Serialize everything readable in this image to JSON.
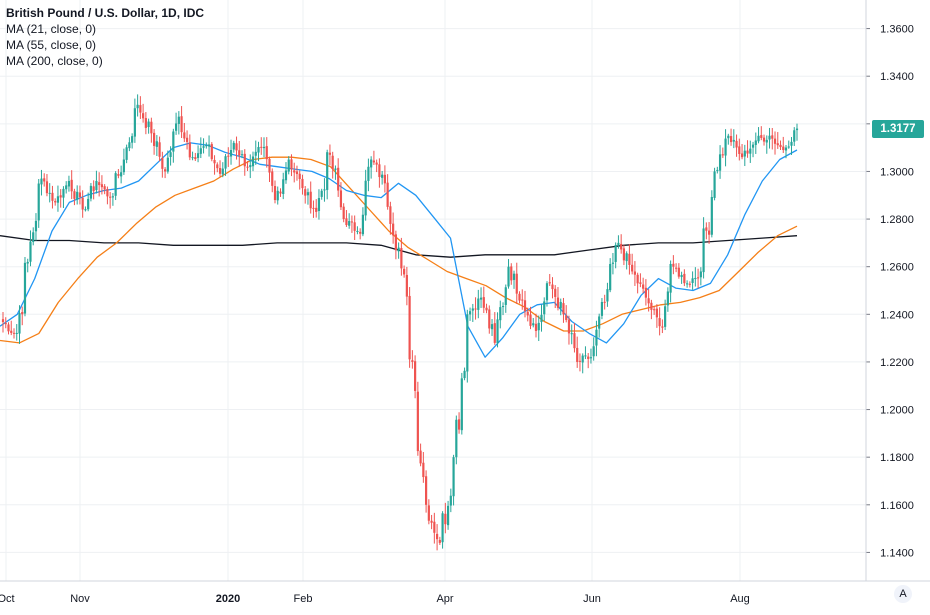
{
  "legend": {
    "title": "British Pound / U.S. Dollar, 1D, IDC",
    "ma21": "MA (21, close, 0)",
    "ma55": "MA (55, close, 0)",
    "ma200": "MA (200, close, 0)"
  },
  "last_price": {
    "label": "1.3177",
    "value": 1.3177,
    "color": "#26a69a"
  },
  "axis_button": "A",
  "colors": {
    "up": "#26a69a",
    "down": "#ef5350",
    "ma21": "#2196f3",
    "ma55": "#f57f17",
    "ma200": "#131722",
    "grid": "#eef0f3"
  },
  "chart_data": {
    "type": "candlestick",
    "title": "British Pound / U.S. Dollar, 1D, IDC",
    "y_ticks": [
      "1.3600",
      "1.3400",
      "1.3200",
      "1.3000",
      "1.2800",
      "1.2600",
      "1.2400",
      "1.2200",
      "1.2000",
      "1.1800",
      "1.1600",
      "1.1400"
    ],
    "ylim": [
      1.128,
      1.372
    ],
    "x_ticks": [
      "Oct",
      "Nov",
      "2020",
      "Feb",
      "Apr",
      "Jun",
      "Aug"
    ],
    "grid": true,
    "anchors": [
      [
        1.238,
        1.232
      ],
      [
        1.226,
        1.262
      ],
      [
        1.262,
        1.297
      ],
      [
        1.297,
        1.287
      ],
      [
        1.287,
        1.296
      ],
      [
        1.296,
        1.284
      ],
      [
        1.284,
        1.296
      ],
      [
        1.296,
        1.289
      ],
      [
        1.289,
        1.305
      ],
      [
        1.305,
        1.328
      ],
      [
        1.328,
        1.316
      ],
      [
        1.316,
        1.3
      ],
      [
        1.3,
        1.323
      ],
      [
        1.323,
        1.306
      ],
      [
        1.306,
        1.311
      ],
      [
        1.311,
        1.299
      ],
      [
        1.299,
        1.312
      ],
      [
        1.312,
        1.302
      ],
      [
        1.302,
        1.31
      ],
      [
        1.31,
        1.288
      ],
      [
        1.288,
        1.305
      ],
      [
        1.305,
        1.293
      ],
      [
        1.293,
        1.283
      ],
      [
        1.283,
        1.307
      ],
      [
        1.307,
        1.28
      ],
      [
        1.28,
        1.275
      ],
      [
        1.275,
        1.305
      ],
      [
        1.305,
        1.295
      ],
      [
        1.295,
        1.268
      ],
      [
        1.268,
        1.22
      ],
      [
        1.22,
        1.16
      ],
      [
        1.16,
        1.144
      ],
      [
        1.144,
        1.18
      ],
      [
        1.18,
        1.24
      ],
      [
        1.24,
        1.247
      ],
      [
        1.247,
        1.228
      ],
      [
        1.228,
        1.26
      ],
      [
        1.26,
        1.246
      ],
      [
        1.246,
        1.233
      ],
      [
        1.233,
        1.253
      ],
      [
        1.253,
        1.24
      ],
      [
        1.24,
        1.22
      ],
      [
        1.22,
        1.222
      ],
      [
        1.222,
        1.245
      ],
      [
        1.245,
        1.27
      ],
      [
        1.27,
        1.258
      ],
      [
        1.258,
        1.247
      ],
      [
        1.247,
        1.235
      ],
      [
        1.235,
        1.26
      ],
      [
        1.26,
        1.253
      ],
      [
        1.253,
        1.258
      ],
      [
        1.258,
        1.3
      ],
      [
        1.3,
        1.315
      ],
      [
        1.315,
        1.306
      ],
      [
        1.306,
        1.313
      ],
      [
        1.313,
        1.315
      ],
      [
        1.315,
        1.309
      ],
      [
        1.309,
        1.318
      ]
    ],
    "ma21": [
      1.235,
      1.24,
      1.255,
      1.275,
      1.287,
      1.29,
      1.292,
      1.293,
      1.296,
      1.303,
      1.31,
      1.312,
      1.311,
      1.308,
      1.306,
      1.303,
      1.302,
      1.301,
      1.3,
      1.297,
      1.292,
      1.29,
      1.289,
      1.295,
      1.29,
      1.281,
      1.272,
      1.235,
      1.222,
      1.23,
      1.24,
      1.244,
      1.245,
      1.237,
      1.232,
      1.228,
      1.236,
      1.248,
      1.255,
      1.251,
      1.25,
      1.253,
      1.265,
      1.282,
      1.296,
      1.305,
      1.309
    ],
    "ma55": [
      1.229,
      1.228,
      1.232,
      1.245,
      1.255,
      1.264,
      1.27,
      1.278,
      1.285,
      1.29,
      1.293,
      1.296,
      1.301,
      1.305,
      1.306,
      1.306,
      1.305,
      1.302,
      1.293,
      1.284,
      1.275,
      1.268,
      1.263,
      1.258,
      1.255,
      1.252,
      1.247,
      1.243,
      1.237,
      1.233,
      1.233,
      1.236,
      1.24,
      1.242,
      1.244,
      1.245,
      1.247,
      1.25,
      1.258,
      1.266,
      1.273,
      1.277
    ],
    "ma200": [
      1.273,
      1.271,
      1.271,
      1.27,
      1.27,
      1.269,
      1.269,
      1.269,
      1.27,
      1.27,
      1.27,
      1.269,
      1.265,
      1.264,
      1.265,
      1.265,
      1.265,
      1.267,
      1.269,
      1.27,
      1.27,
      1.271,
      1.272,
      1.273
    ]
  }
}
